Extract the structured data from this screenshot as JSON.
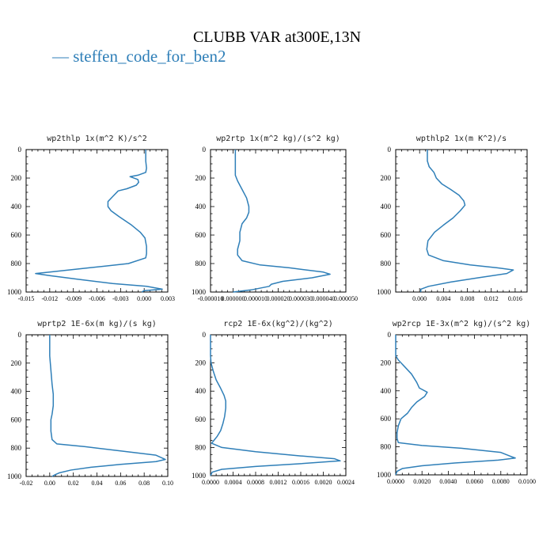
{
  "title": "CLUBB VAR at300E,13N",
  "legend": [
    {
      "name": "steffen_code_for_ben2",
      "color": "#2f7fb8",
      "marker": "—"
    }
  ],
  "chart_data": [
    {
      "type": "line",
      "title": "wp2thlp  1x(m^2 K)/s^2",
      "xlim": [
        -0.015,
        0.003
      ],
      "ylim": [
        1000,
        0
      ],
      "xticks": [
        -0.015,
        -0.012,
        -0.009,
        -0.006,
        -0.003,
        0.0,
        0.003
      ],
      "xtick_labels": [
        "-0.015",
        "-0.012",
        "-0.009",
        "-0.006",
        "-0.003",
        "0.000",
        "0.003"
      ],
      "yticks": [
        0,
        200,
        400,
        600,
        800,
        1000
      ],
      "ytick_labels": [
        "0",
        "200",
        "400",
        "600",
        "800",
        "1000"
      ],
      "series": [
        {
          "name": "steffen_code_for_ben2",
          "color": "#2f7fb8",
          "points": [
            [
              0.0002,
              0
            ],
            [
              0.0002,
              80
            ],
            [
              0.0003,
              130
            ],
            [
              0.0002,
              160
            ],
            [
              -0.0008,
              180
            ],
            [
              -0.0018,
              190
            ],
            [
              -0.0008,
              210
            ],
            [
              -0.0007,
              230
            ],
            [
              -0.001,
              250
            ],
            [
              -0.0022,
              275
            ],
            [
              -0.0033,
              290
            ],
            [
              -0.004,
              330
            ],
            [
              -0.0046,
              365
            ],
            [
              -0.0046,
              400
            ],
            [
              -0.0042,
              430
            ],
            [
              -0.0032,
              470
            ],
            [
              -0.0016,
              530
            ],
            [
              -0.0005,
              580
            ],
            [
              0.0001,
              620
            ],
            [
              0.0003,
              680
            ],
            [
              0.0003,
              730
            ],
            [
              0.0002,
              760
            ],
            [
              -0.002,
              800
            ],
            [
              -0.007,
              830
            ],
            [
              -0.012,
              860
            ],
            [
              -0.0138,
              870
            ],
            [
              -0.012,
              885
            ],
            [
              -0.0085,
              910
            ],
            [
              -0.004,
              940
            ],
            [
              0.0003,
              960
            ],
            [
              0.0023,
              980
            ],
            [
              0.0,
              990
            ],
            [
              -0.0003,
              1000
            ]
          ]
        }
      ]
    },
    {
      "type": "line",
      "title": "wp2rtp  1x(m^2 kg)/(s^2 kg)",
      "xlim": [
        -1e-05,
        5e-05
      ],
      "ylim": [
        1000,
        0
      ],
      "xticks": [
        -1e-05,
        0.0,
        1e-05,
        2e-05,
        3e-05,
        4e-05,
        5e-05
      ],
      "xtick_labels": [
        "-0.000010",
        "0.000000",
        "0.000010",
        "0.000020",
        "0.000030",
        "0.000040",
        "0.000050"
      ],
      "yticks": [
        0,
        200,
        400,
        600,
        800,
        1000
      ],
      "ytick_labels": [
        "0",
        "200",
        "400",
        "600",
        "800",
        "1000"
      ],
      "series": [
        {
          "name": "steffen_code_for_ben2",
          "color": "#2f7fb8",
          "points": [
            [
              1e-06,
              0
            ],
            [
              1e-06,
              100
            ],
            [
              1e-06,
              180
            ],
            [
              2e-06,
              220
            ],
            [
              4e-06,
              280
            ],
            [
              6e-06,
              340
            ],
            [
              7e-06,
              400
            ],
            [
              7e-06,
              440
            ],
            [
              6e-06,
              480
            ],
            [
              4e-06,
              520
            ],
            [
              3e-06,
              580
            ],
            [
              3e-06,
              640
            ],
            [
              2e-06,
              700
            ],
            [
              2e-06,
              740
            ],
            [
              4e-06,
              780
            ],
            [
              1.2e-05,
              810
            ],
            [
              2.5e-05,
              830
            ],
            [
              4e-05,
              860
            ],
            [
              4.3e-05,
              875
            ],
            [
              3.5e-05,
              900
            ],
            [
              2.2e-05,
              925
            ],
            [
              1.7e-05,
              945
            ],
            [
              1.6e-05,
              960
            ],
            [
              8e-06,
              985
            ],
            [
              0.0,
              1000
            ]
          ]
        }
      ]
    },
    {
      "type": "line",
      "title": "wpthlp2  1x(m K^2)/s",
      "xlim": [
        -0.004,
        0.018
      ],
      "ylim": [
        1000,
        0
      ],
      "xticks": [
        0.0,
        0.004,
        0.008,
        0.012,
        0.016
      ],
      "xtick_labels": [
        "0.000",
        "0.004",
        "0.008",
        "0.012",
        "0.016"
      ],
      "yticks": [
        0,
        200,
        400,
        600,
        800,
        1000
      ],
      "ytick_labels": [
        "0",
        "200",
        "400",
        "600",
        "800",
        "1000"
      ],
      "series": [
        {
          "name": "steffen_code_for_ben2",
          "color": "#2f7fb8",
          "points": [
            [
              0.0013,
              0
            ],
            [
              0.0013,
              80
            ],
            [
              0.0016,
              120
            ],
            [
              0.0024,
              160
            ],
            [
              0.0028,
              200
            ],
            [
              0.0037,
              240
            ],
            [
              0.0052,
              280
            ],
            [
              0.0066,
              320
            ],
            [
              0.0074,
              360
            ],
            [
              0.0076,
              390
            ],
            [
              0.0068,
              430
            ],
            [
              0.0056,
              480
            ],
            [
              0.004,
              530
            ],
            [
              0.0025,
              580
            ],
            [
              0.0014,
              640
            ],
            [
              0.0012,
              700
            ],
            [
              0.0015,
              740
            ],
            [
              0.004,
              780
            ],
            [
              0.0085,
              810
            ],
            [
              0.013,
              830
            ],
            [
              0.0157,
              845
            ],
            [
              0.0146,
              870
            ],
            [
              0.0098,
              900
            ],
            [
              0.0052,
              930
            ],
            [
              0.0015,
              960
            ],
            [
              0.0002,
              980
            ],
            [
              0.0002,
              1000
            ]
          ]
        }
      ]
    },
    {
      "type": "line",
      "title": "wprtp2  1E-6x(m kg)/(s kg)",
      "xlim": [
        -0.02,
        0.1
      ],
      "ylim": [
        1000,
        0
      ],
      "xticks": [
        -0.02,
        0.0,
        0.02,
        0.04,
        0.06,
        0.08,
        0.1
      ],
      "xtick_labels": [
        "-0.02",
        "0.00",
        "0.02",
        "0.04",
        "0.06",
        "0.08",
        "0.10"
      ],
      "yticks": [
        0,
        200,
        400,
        600,
        800,
        1000
      ],
      "ytick_labels": [
        "0",
        "200",
        "400",
        "600",
        "800",
        "1000"
      ],
      "series": [
        {
          "name": "steffen_code_for_ben2",
          "color": "#2f7fb8",
          "points": [
            [
              0.0,
              0
            ],
            [
              0.0,
              150
            ],
            [
              0.001,
              250
            ],
            [
              0.002,
              350
            ],
            [
              0.003,
              420
            ],
            [
              0.003,
              500
            ],
            [
              0.002,
              560
            ],
            [
              0.001,
              600
            ],
            [
              0.001,
              680
            ],
            [
              0.002,
              740
            ],
            [
              0.006,
              770
            ],
            [
              0.03,
              790
            ],
            [
              0.06,
              820
            ],
            [
              0.09,
              850
            ],
            [
              0.098,
              880
            ],
            [
              0.09,
              895
            ],
            [
              0.06,
              915
            ],
            [
              0.035,
              935
            ],
            [
              0.018,
              955
            ],
            [
              0.008,
              975
            ],
            [
              0.004,
              990
            ],
            [
              0.002,
              1000
            ]
          ]
        }
      ]
    },
    {
      "type": "line",
      "title": "rcp2  1E-6x(kg^2)/(kg^2)",
      "xlim": [
        0.0,
        0.0024
      ],
      "ylim": [
        1000,
        0
      ],
      "xticks": [
        0.0,
        0.0004,
        0.0008,
        0.0012,
        0.0016,
        0.002,
        0.0024
      ],
      "xtick_labels": [
        "0.0000",
        "0.0004",
        "0.0008",
        "0.0012",
        "0.0016",
        "0.0020",
        "0.0024"
      ],
      "yticks": [
        0,
        200,
        400,
        600,
        800,
        1000
      ],
      "ytick_labels": [
        "0",
        "200",
        "400",
        "600",
        "800",
        "1000"
      ],
      "series": [
        {
          "name": "steffen_code_for_ben2",
          "color": "#2f7fb8",
          "points": [
            [
              0.0,
              0
            ],
            [
              0.0,
              150
            ],
            [
              1e-05,
              200
            ],
            [
              5e-05,
              260
            ],
            [
              0.0001,
              320
            ],
            [
              0.00018,
              380
            ],
            [
              0.00024,
              430
            ],
            [
              0.00027,
              470
            ],
            [
              0.00027,
              520
            ],
            [
              0.00025,
              580
            ],
            [
              0.00022,
              630
            ],
            [
              0.00018,
              680
            ],
            [
              0.00012,
              720
            ],
            [
              6e-05,
              750
            ],
            [
              2e-05,
              770
            ],
            [
              0.0002,
              800
            ],
            [
              0.0008,
              830
            ],
            [
              0.0016,
              860
            ],
            [
              0.0022,
              880
            ],
            [
              0.0023,
              895
            ],
            [
              0.0016,
              915
            ],
            [
              0.0008,
              935
            ],
            [
              0.0002,
              955
            ],
            [
              3e-05,
              975
            ],
            [
              0.0,
              1000
            ]
          ]
        }
      ]
    },
    {
      "type": "line",
      "title": "wp2rcp  1E-3x(m^2 kg)/(s^2 kg)",
      "xlim": [
        0.0,
        0.01
      ],
      "ylim": [
        1000,
        0
      ],
      "xticks": [
        0.0,
        0.002,
        0.004,
        0.006,
        0.008,
        0.01
      ],
      "xtick_labels": [
        "0.0000",
        "0.0020",
        "0.0040",
        "0.0060",
        "0.0080",
        "0.0100"
      ],
      "yticks": [
        0,
        200,
        400,
        600,
        800,
        1000
      ],
      "ytick_labels": [
        "0",
        "200",
        "400",
        "600",
        "800",
        "1000"
      ],
      "series": [
        {
          "name": "steffen_code_for_ben2",
          "color": "#2f7fb8",
          "points": [
            [
              0.0,
              0
            ],
            [
              0.0,
              150
            ],
            [
              0.0002,
              180
            ],
            [
              0.0006,
              220
            ],
            [
              0.0012,
              280
            ],
            [
              0.0016,
              340
            ],
            [
              0.0018,
              380
            ],
            [
              0.0024,
              410
            ],
            [
              0.0022,
              440
            ],
            [
              0.0016,
              480
            ],
            [
              0.0012,
              520
            ],
            [
              0.0009,
              560
            ],
            [
              0.0004,
              600
            ],
            [
              0.0002,
              650
            ],
            [
              0.0001,
              700
            ],
            [
              0.0001,
              740
            ],
            [
              0.0002,
              770
            ],
            [
              0.002,
              790
            ],
            [
              0.005,
              810
            ],
            [
              0.008,
              840
            ],
            [
              0.0088,
              870
            ],
            [
              0.0091,
              880
            ],
            [
              0.0078,
              895
            ],
            [
              0.0045,
              915
            ],
            [
              0.002,
              935
            ],
            [
              0.0005,
              955
            ],
            [
              0.0001,
              975
            ],
            [
              0.0,
              1000
            ]
          ]
        }
      ]
    }
  ]
}
